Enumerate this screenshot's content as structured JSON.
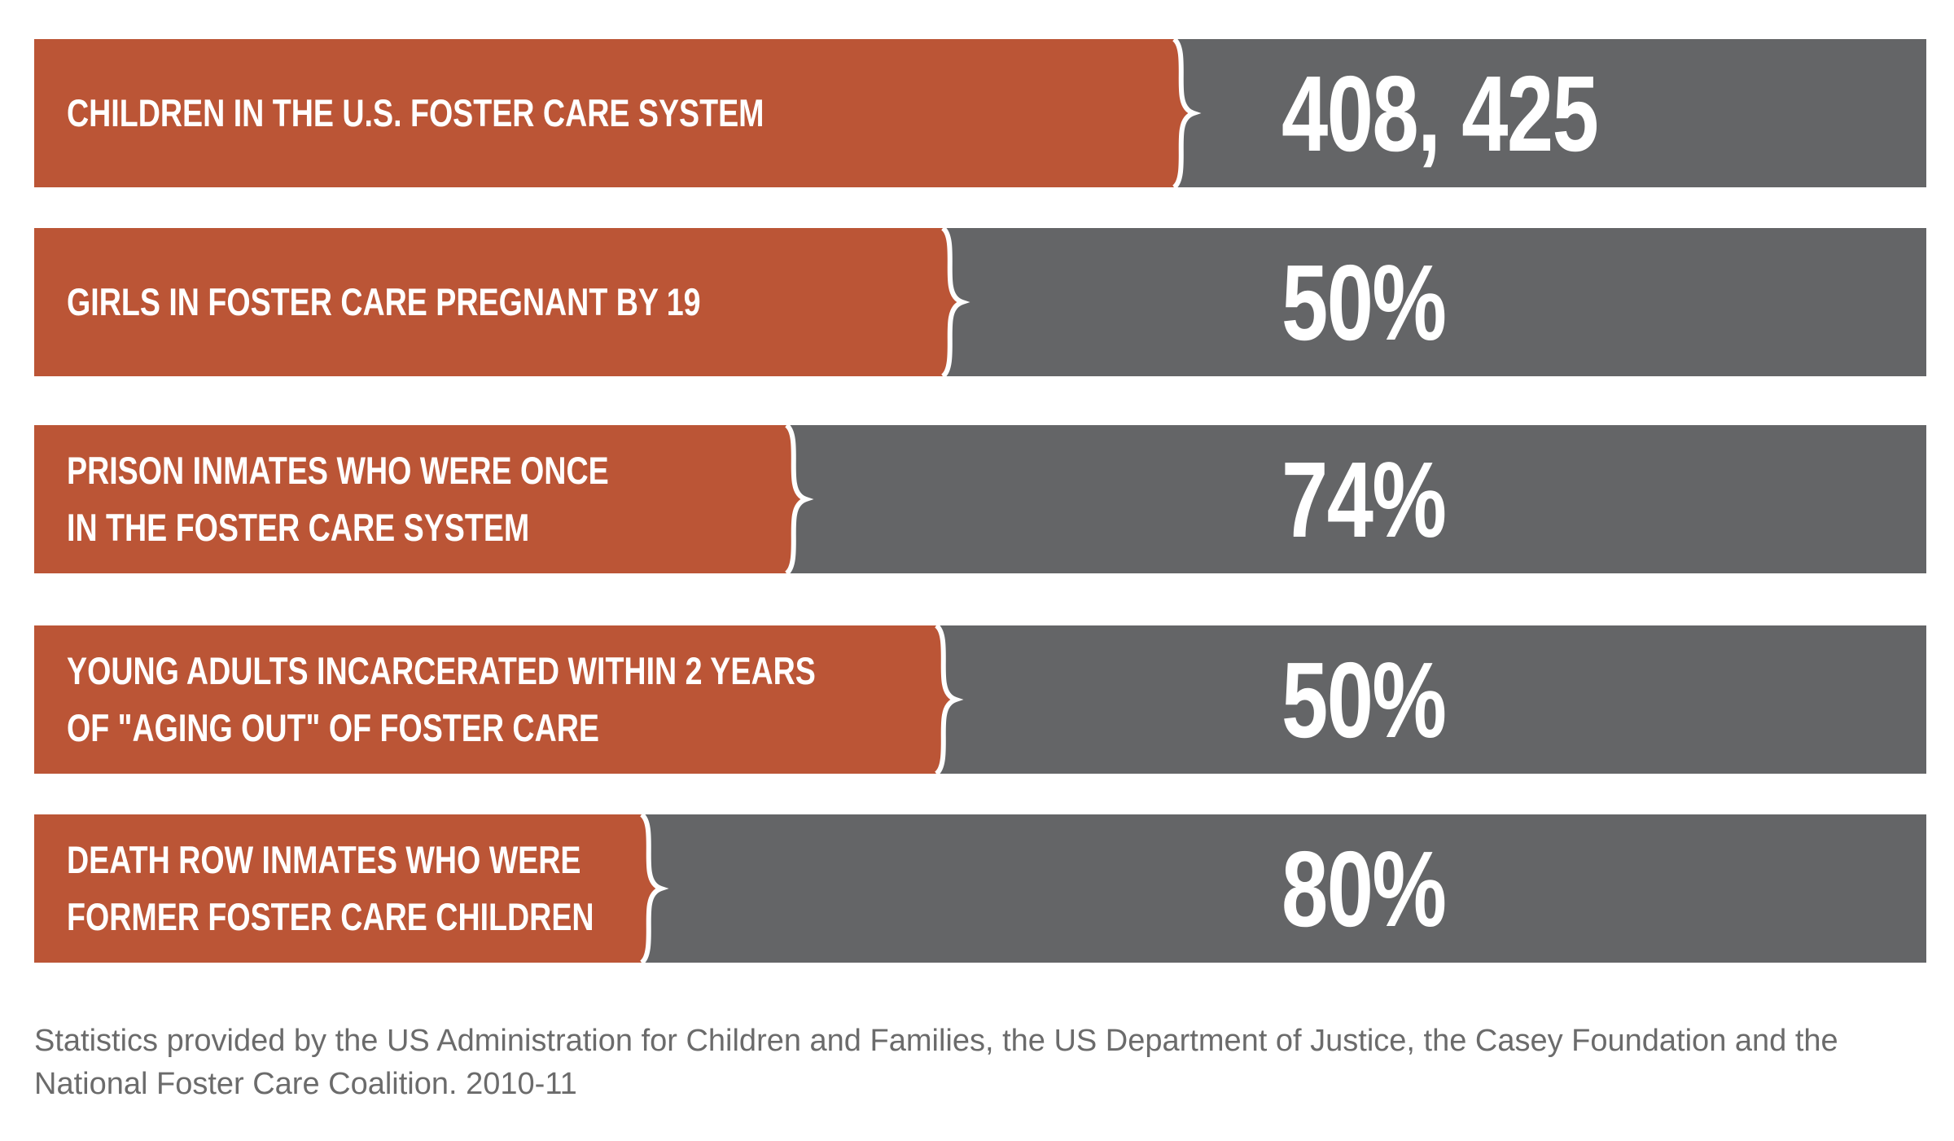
{
  "stats": [
    {
      "label_lines": [
        "CHILDREN IN THE U.S. FOSTER CARE SYSTEM"
      ],
      "value": "408, 425"
    },
    {
      "label_lines": [
        "GIRLS IN FOSTER CARE PREGNANT BY 19"
      ],
      "value": "50%"
    },
    {
      "label_lines": [
        "PRISON INMATES WHO WERE ONCE",
        "IN THE FOSTER CARE SYSTEM"
      ],
      "value": "74%"
    },
    {
      "label_lines": [
        "YOUNG ADULTS INCARCERATED WITHIN 2 YEARS",
        "OF \"AGING OUT\" OF FOSTER CARE"
      ],
      "value": "50%"
    },
    {
      "label_lines": [
        "DEATH ROW INMATES WHO WERE",
        "FORMER FOSTER CARE CHILDREN"
      ],
      "value": "80%"
    }
  ],
  "source": "Statistics provided by the US Administration for Children and Families, the US Department of Justice, the Casey Foundation and the National Foster Care Coalition. 2010-11",
  "colors": {
    "label_panel": "#bb5536",
    "value_panel": "#646567",
    "text_light": "#ffffff",
    "source_text": "#6b6b6b"
  }
}
